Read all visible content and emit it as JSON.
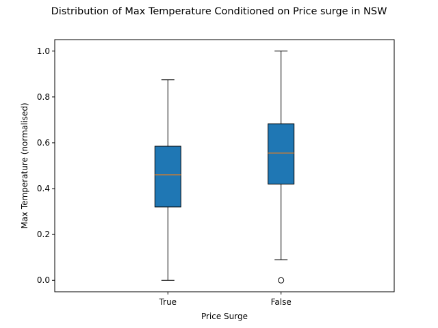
{
  "chart_data": {
    "type": "boxplot",
    "title": "Distribution of Max Temperature Conditioned on Price surge in NSW",
    "xlabel": "Price Surge",
    "ylabel": "Max Temperature (normalised)",
    "ylim": [
      -0.05,
      1.05
    ],
    "yticks": [
      "0.0",
      "0.2",
      "0.4",
      "0.6",
      "0.8",
      "1.0"
    ],
    "grid": false,
    "box_color": "#1f77b4",
    "median_color": "#ff7f0e",
    "categories": [
      "True",
      "False"
    ],
    "boxes": [
      {
        "category": "True",
        "whisker_low": 0.0,
        "q1": 0.32,
        "median": 0.46,
        "q3": 0.585,
        "whisker_high": 0.875,
        "outliers": []
      },
      {
        "category": "False",
        "whisker_low": 0.09,
        "q1": 0.42,
        "median": 0.555,
        "q3": 0.683,
        "whisker_high": 1.0,
        "outliers": [
          0.0
        ]
      }
    ]
  }
}
